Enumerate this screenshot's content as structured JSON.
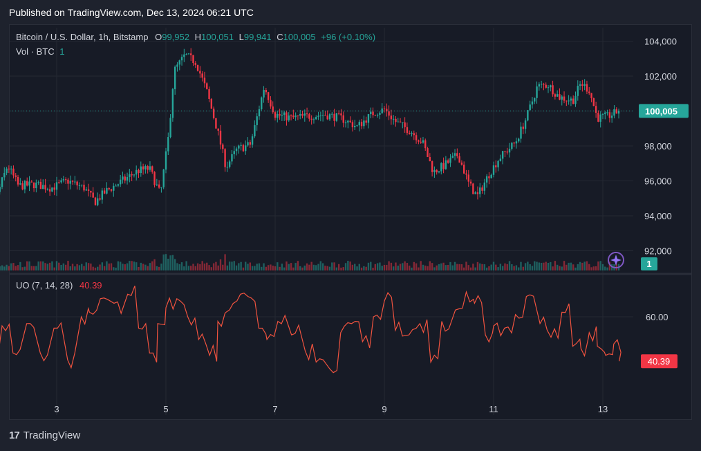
{
  "header": {
    "published": "Published on TradingView.com, Dec 13, 2024 06:21 UTC"
  },
  "legend": {
    "symbol": "Bitcoin / U.S. Dollar, 1h, Bitstamp",
    "o_label": "O",
    "o_value": "99,952",
    "h_label": "H",
    "h_value": "100,051",
    "l_label": "L",
    "l_value": "99,941",
    "c_label": "C",
    "c_value": "100,005",
    "change": "+96 (+0.10%)",
    "vol_label": "Vol · BTC",
    "vol_value": "1"
  },
  "oscillator": {
    "label": "UO (7, 14, 28)",
    "value": "40.39"
  },
  "footer": {
    "logo_text": "TradingView"
  },
  "colors": {
    "up": "#26a69a",
    "down": "#f23645",
    "oscillator": "#f0533f",
    "background": "#171b26",
    "grid": "#242833"
  },
  "chart_data": [
    {
      "type": "candlestick",
      "title": "Bitcoin / U.S. Dollar, 1h, Bitstamp",
      "x_ticks": [
        "3",
        "5",
        "7",
        "9",
        "11",
        "13"
      ],
      "y_ticks": [
        "104,000",
        "102,000",
        "100,000",
        "98,000",
        "96,000",
        "94,000",
        "92,000"
      ],
      "ylim": [
        91000,
        105000
      ],
      "last_price": "100,005",
      "volume_badge": "1",
      "series_path": [
        [
          1.5,
          96800
        ],
        [
          1.7,
          96200
        ],
        [
          1.9,
          95100
        ],
        [
          2.1,
          96900
        ],
        [
          2.3,
          95700
        ],
        [
          2.6,
          95800
        ],
        [
          2.9,
          95600
        ],
        [
          3.2,
          96000
        ],
        [
          3.5,
          95600
        ],
        [
          3.7,
          94800
        ],
        [
          3.9,
          95400
        ],
        [
          4.2,
          96000
        ],
        [
          4.5,
          96600
        ],
        [
          4.7,
          96700
        ],
        [
          4.9,
          95200
        ],
        [
          5.05,
          98600
        ],
        [
          5.15,
          102300
        ],
        [
          5.35,
          103200
        ],
        [
          5.55,
          102800
        ],
        [
          5.75,
          101100
        ],
        [
          5.95,
          98800
        ],
        [
          6.1,
          96800
        ],
        [
          6.3,
          97800
        ],
        [
          6.55,
          98100
        ],
        [
          6.8,
          101400
        ],
        [
          7.0,
          99800
        ],
        [
          7.3,
          99600
        ],
        [
          7.6,
          99700
        ],
        [
          7.9,
          99800
        ],
        [
          8.2,
          99600
        ],
        [
          8.5,
          99100
        ],
        [
          8.8,
          99900
        ],
        [
          9.0,
          100100
        ],
        [
          9.2,
          99400
        ],
        [
          9.5,
          98800
        ],
        [
          9.7,
          98200
        ],
        [
          9.9,
          96500
        ],
        [
          10.1,
          96900
        ],
        [
          10.35,
          97500
        ],
        [
          10.55,
          95800
        ],
        [
          10.7,
          95100
        ],
        [
          10.9,
          96300
        ],
        [
          11.1,
          97300
        ],
        [
          11.4,
          98200
        ],
        [
          11.6,
          99600
        ],
        [
          11.8,
          101400
        ],
        [
          12.0,
          101500
        ],
        [
          12.2,
          100800
        ],
        [
          12.45,
          100600
        ],
        [
          12.6,
          101600
        ],
        [
          12.75,
          101200
        ],
        [
          12.9,
          99600
        ],
        [
          13.1,
          99700
        ],
        [
          13.3,
          100005
        ]
      ]
    },
    {
      "type": "line",
      "title": "UO (7, 14, 28)",
      "y_ticks": [
        "60.00"
      ],
      "ylim": [
        30,
        75
      ],
      "last_value": "40.39",
      "x": [
        1.5,
        1.8,
        2.0,
        2.2,
        2.45,
        2.7,
        2.95,
        3.2,
        3.45,
        3.6,
        3.8,
        4.05,
        4.3,
        4.5,
        4.7,
        4.85,
        5.0,
        5.2,
        5.4,
        5.6,
        5.8,
        5.95,
        6.1,
        6.3,
        6.5,
        6.7,
        6.85,
        7.05,
        7.3,
        7.55,
        7.75,
        8.0,
        8.2,
        8.4,
        8.6,
        8.8,
        9.0,
        9.2,
        9.45,
        9.65,
        9.85,
        10.05,
        10.3,
        10.5,
        10.65,
        10.85,
        11.0,
        11.2,
        11.4,
        11.6,
        11.85,
        12.05,
        12.25,
        12.45,
        12.6,
        12.75,
        12.9,
        13.05,
        13.2,
        13.3
      ],
      "values": [
        47,
        41,
        56,
        44,
        57,
        44,
        55,
        41,
        60,
        62,
        68,
        66,
        70,
        55,
        44,
        57,
        64,
        68,
        60,
        50,
        43,
        58,
        62,
        67,
        69,
        55,
        50,
        58,
        52,
        45,
        40,
        37,
        53,
        57,
        49,
        60,
        67,
        54,
        52,
        57,
        40,
        58,
        63,
        71,
        66,
        52,
        56,
        55,
        61,
        69,
        57,
        51,
        62,
        47,
        46,
        53,
        47,
        43,
        48,
        40.39
      ]
    }
  ]
}
